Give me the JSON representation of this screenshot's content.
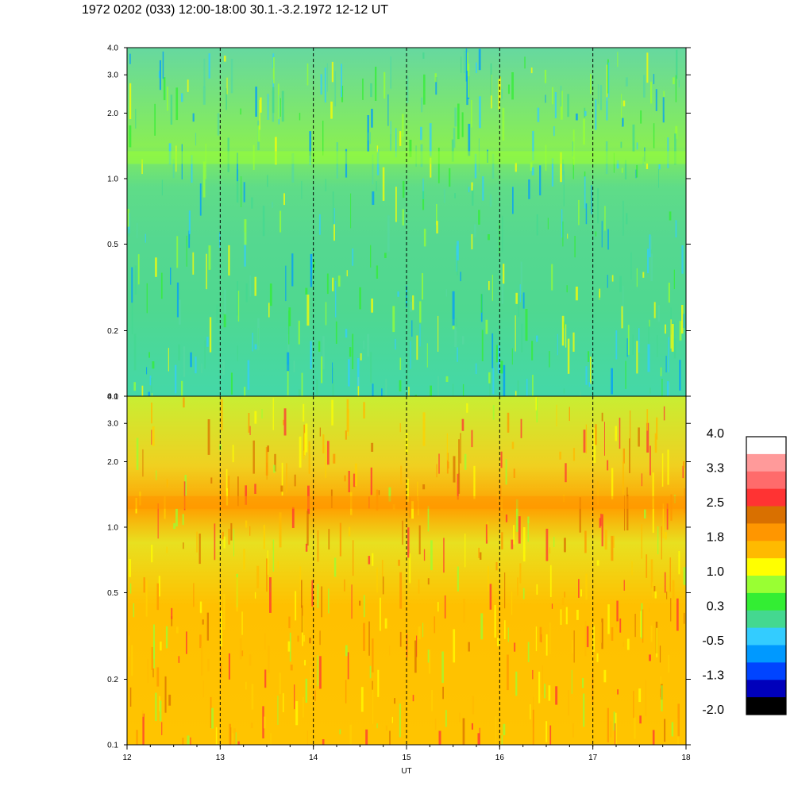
{
  "title": "1972 0202 (033) 12:00-18:00 30.1.-3.2.1972  12-12 UT",
  "chart_data": [
    {
      "type": "heatmap",
      "panel": "upper",
      "y_scale": "log",
      "ylim": [
        0.1,
        4.0
      ],
      "y_ticks": [
        "0.1",
        "0.2",
        "0.5",
        "1.0",
        "2.0",
        "3.0",
        "4.0"
      ],
      "xlim": [
        12,
        18
      ],
      "x_ticks": [
        "12",
        "13",
        "14",
        "15",
        "16",
        "17",
        "18"
      ],
      "vertical_dashed_lines_at": [
        13,
        14,
        15,
        16,
        17
      ],
      "dominant_levels": "-0.5 to 1.0 (cyan/green); yellow patches at low frequency 12-14 UT"
    },
    {
      "type": "heatmap",
      "panel": "lower",
      "y_scale": "log",
      "ylim": [
        0.1,
        4.0
      ],
      "y_ticks": [
        "0.1",
        "0.2",
        "0.5",
        "1.0",
        "2.0",
        "3.0",
        "4.0"
      ],
      "xlim": [
        12,
        18
      ],
      "x_ticks": [
        "12",
        "13",
        "14",
        "15",
        "16",
        "17",
        "18"
      ],
      "xlabel": "UT",
      "vertical_dashed_lines_at": [
        13,
        14,
        15,
        16,
        17
      ],
      "dominant_levels": "1.0 to 2.5 (yellow/orange); orange band near 1.1-1.5"
    }
  ],
  "colorbar": {
    "labels": [
      "4.0",
      "3.3",
      "2.5",
      "1.8",
      "1.0",
      "0.3",
      "-0.5",
      "-1.3",
      "-2.0"
    ],
    "colors": [
      "#ffffff",
      "#ff9a9a",
      "#ff6b6b",
      "#ff3333",
      "#d97000",
      "#ff9600",
      "#ffba00",
      "#ffff00",
      "#99ff33",
      "#33ee33",
      "#44d890",
      "#33ccff",
      "#0099ff",
      "#0044ff",
      "#0000bb",
      "#000000"
    ]
  }
}
